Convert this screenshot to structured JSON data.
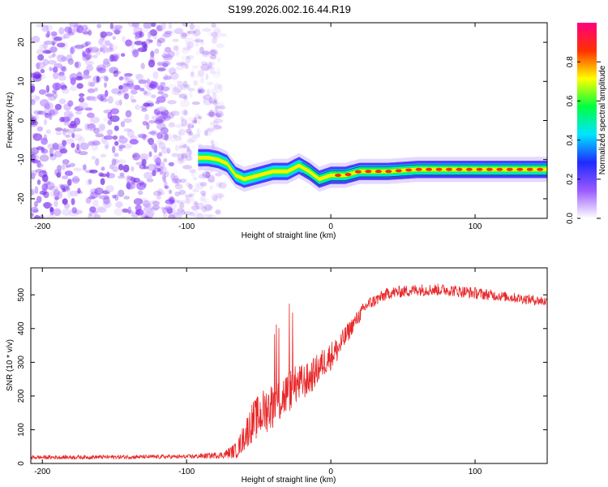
{
  "title": "S199.2026.002.16.44.R19",
  "chart_data": [
    {
      "type": "heatmap",
      "name": "spectrogram",
      "xlabel": "Height of straight line (km)",
      "ylabel": "Frequency (Hz)",
      "xlim": [
        -208,
        150
      ],
      "ylim": [
        -25,
        25
      ],
      "xticks": [
        -200,
        -100,
        0,
        100
      ],
      "yticks": [
        -20,
        -10,
        0,
        10,
        20
      ],
      "colorbar": {
        "label": "Normalized spectral amplitude",
        "range": [
          0,
          1
        ],
        "ticks": [
          "0.0",
          "0.2",
          "0.4",
          "0.6",
          "0.8"
        ],
        "tick_values": [
          0.0,
          0.2,
          0.4,
          0.6,
          0.8
        ],
        "colors": [
          "#ffffff",
          "#9b59ff",
          "#1f2bff",
          "#00e5ff",
          "#00ff40",
          "#ffff00",
          "#ff3000",
          "#ff0080"
        ]
      },
      "noise_region": {
        "x": [
          -208,
          -75
        ],
        "color": "#8a2be2"
      },
      "ridge": [
        {
          "x": -92,
          "f": -9.5
        },
        {
          "x": -85,
          "f": -9.5
        },
        {
          "x": -78,
          "f": -10
        },
        {
          "x": -72,
          "f": -11
        },
        {
          "x": -66,
          "f": -14
        },
        {
          "x": -60,
          "f": -15
        },
        {
          "x": -50,
          "f": -14
        },
        {
          "x": -40,
          "f": -13
        },
        {
          "x": -30,
          "f": -13
        },
        {
          "x": -22,
          "f": -11.5
        },
        {
          "x": -15,
          "f": -13
        },
        {
          "x": -8,
          "f": -15
        },
        {
          "x": 0,
          "f": -14
        },
        {
          "x": 10,
          "f": -14
        },
        {
          "x": 20,
          "f": -13
        },
        {
          "x": 40,
          "f": -13
        },
        {
          "x": 60,
          "f": -12.5
        },
        {
          "x": 80,
          "f": -12.5
        },
        {
          "x": 100,
          "f": -12.5
        },
        {
          "x": 120,
          "f": -12.5
        },
        {
          "x": 150,
          "f": -12.5
        }
      ]
    },
    {
      "type": "line",
      "name": "snr",
      "xlabel": "Height of straight line (km)",
      "ylabel": "SNR (10 * v/v)",
      "xlim": [
        -208,
        150
      ],
      "ylim": [
        0,
        580
      ],
      "xticks": [
        -200,
        -100,
        0,
        100
      ],
      "yticks": [
        0,
        100,
        200,
        300,
        400,
        500
      ],
      "series": [
        {
          "name": "SNR",
          "color": "#e8282a",
          "trend_x": [
            -208,
            -100,
            -75,
            -65,
            -55,
            -45,
            -35,
            -25,
            -15,
            -5,
            5,
            15,
            25,
            40,
            60,
            80,
            100,
            120,
            150
          ],
          "trend_y": [
            18,
            20,
            25,
            40,
            120,
            160,
            190,
            230,
            250,
            300,
            340,
            410,
            470,
            505,
            515,
            515,
            505,
            495,
            480
          ],
          "noise_amp": [
            6,
            6,
            10,
            25,
            60,
            70,
            70,
            60,
            50,
            45,
            40,
            25,
            20,
            18,
            18,
            18,
            18,
            15,
            15
          ]
        }
      ]
    }
  ]
}
